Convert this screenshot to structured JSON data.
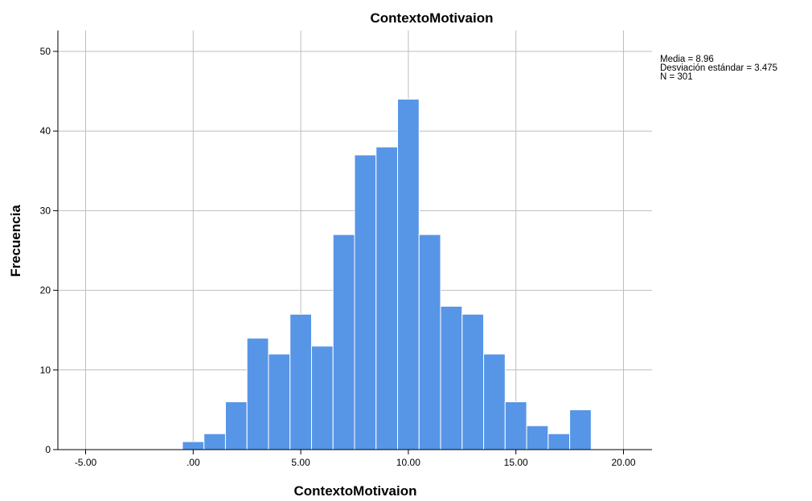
{
  "chart_data": {
    "type": "bar",
    "title": "ContextoMotivaion",
    "xlabel": "ContextoMotivaion",
    "ylabel": "Frecuencia",
    "xlim": [
      -6.3,
      21.6
    ],
    "ylim": [
      0,
      52.5
    ],
    "xticks": [
      -5,
      0,
      5,
      10,
      15,
      20
    ],
    "xtick_labels": [
      "-5.00",
      ".00",
      "5.00",
      "10.00",
      "15.00",
      "20.00"
    ],
    "yticks": [
      0,
      10,
      20,
      30,
      40,
      50
    ],
    "ytick_labels": [
      "0",
      "10",
      "20",
      "30",
      "40",
      "50"
    ],
    "grid": true,
    "bin_width": 1,
    "bins": [
      {
        "start": -0.5,
        "count": 1
      },
      {
        "start": 0.5,
        "count": 2
      },
      {
        "start": 1.5,
        "count": 6
      },
      {
        "start": 2.5,
        "count": 14
      },
      {
        "start": 3.5,
        "count": 12
      },
      {
        "start": 4.5,
        "count": 17
      },
      {
        "start": 5.5,
        "count": 13
      },
      {
        "start": 6.5,
        "count": 27
      },
      {
        "start": 7.5,
        "count": 37
      },
      {
        "start": 8.5,
        "count": 38
      },
      {
        "start": 9.5,
        "count": 44
      },
      {
        "start": 10.5,
        "count": 27
      },
      {
        "start": 11.5,
        "count": 18
      },
      {
        "start": 12.5,
        "count": 17
      },
      {
        "start": 13.5,
        "count": 12
      },
      {
        "start": 14.5,
        "count": 6
      },
      {
        "start": 15.5,
        "count": 3
      },
      {
        "start": 16.5,
        "count": 2
      },
      {
        "start": 17.5,
        "count": 5
      }
    ],
    "bar_color": "#5795e6",
    "statistics": [
      "Media = 8.96",
      "Desviación estándar = 3.475",
      "N = 301"
    ]
  }
}
